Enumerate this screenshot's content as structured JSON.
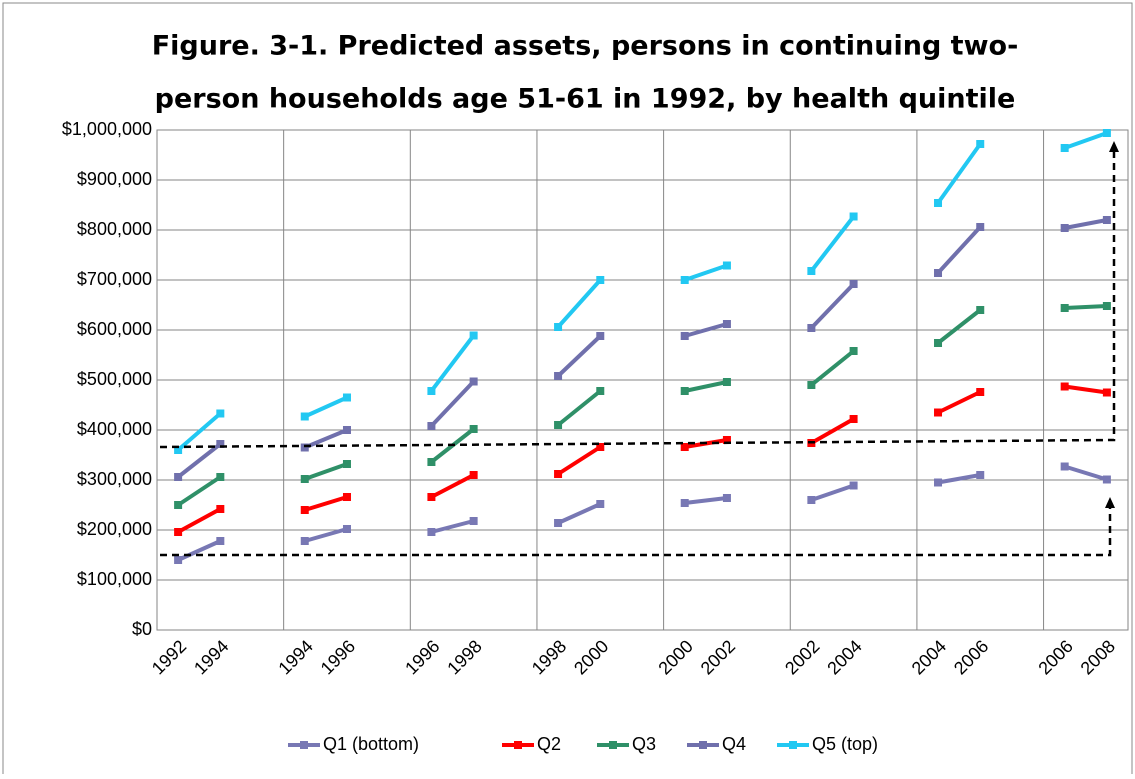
{
  "chart_data": {
    "type": "line",
    "title": "Figure. 3-1.  Predicted assets, persons in continuing two-",
    "subtitle": "person households age 51-61 in 1992, by health quintile",
    "categories": [
      "1992",
      "1994",
      null,
      "1994",
      "1996",
      null,
      "1996",
      "1998",
      null,
      "1998",
      "2000",
      null,
      "2000",
      "2002",
      null,
      "2002",
      "2004",
      null,
      "2004",
      "2006",
      null,
      "2006",
      "2008"
    ],
    "series": [
      {
        "name": "Q1 (bottom)",
        "color": "#7878b4",
        "values": [
          140000,
          178000,
          null,
          178000,
          202000,
          null,
          196000,
          218000,
          null,
          214000,
          252000,
          null,
          254000,
          264000,
          null,
          260000,
          289000,
          null,
          295000,
          310000,
          null,
          327000,
          301000
        ]
      },
      {
        "name": "Q2",
        "color": "#ff0000",
        "values": [
          196000,
          242000,
          null,
          240000,
          266000,
          null,
          266000,
          310000,
          null,
          312000,
          366000,
          null,
          366000,
          380000,
          null,
          374000,
          422000,
          null,
          435000,
          476000,
          null,
          487000,
          475000
        ]
      },
      {
        "name": "Q3",
        "color": "#2f9068",
        "values": [
          250000,
          306000,
          null,
          302000,
          332000,
          null,
          336000,
          402000,
          null,
          410000,
          478000,
          null,
          478000,
          496000,
          null,
          490000,
          558000,
          null,
          574000,
          640000,
          null,
          644000,
          648000
        ]
      },
      {
        "name": "Q4",
        "color": "#7070ac",
        "values": [
          306000,
          372000,
          null,
          365000,
          400000,
          null,
          408000,
          497000,
          null,
          508000,
          588000,
          null,
          588000,
          612000,
          null,
          604000,
          692000,
          null,
          714000,
          806000,
          null,
          804000,
          820000
        ]
      },
      {
        "name": "Q5 (top)",
        "color": "#22c8f2",
        "values": [
          360000,
          433000,
          null,
          427000,
          465000,
          null,
          478000,
          589000,
          null,
          606000,
          700000,
          null,
          700000,
          729000,
          null,
          718000,
          827000,
          null,
          854000,
          972000,
          null,
          964000,
          994000
        ]
      }
    ],
    "ylim": [
      0,
      1000000
    ],
    "yticks": [
      {
        "value": 0,
        "label": "$0"
      },
      {
        "value": 100000,
        "label": "$100,000"
      },
      {
        "value": 200000,
        "label": "$200,000"
      },
      {
        "value": 300000,
        "label": "$300,000"
      },
      {
        "value": 400000,
        "label": "$400,000"
      },
      {
        "value": 500000,
        "label": "$500,000"
      },
      {
        "value": 600000,
        "label": "$600,000"
      },
      {
        "value": 700000,
        "label": "$700,000"
      },
      {
        "value": 800000,
        "label": "$800,000"
      },
      {
        "value": 900000,
        "label": "$900,000"
      },
      {
        "value": 1000000,
        "label": "$1,000,000"
      }
    ],
    "grid": true,
    "legend": "bottom"
  }
}
